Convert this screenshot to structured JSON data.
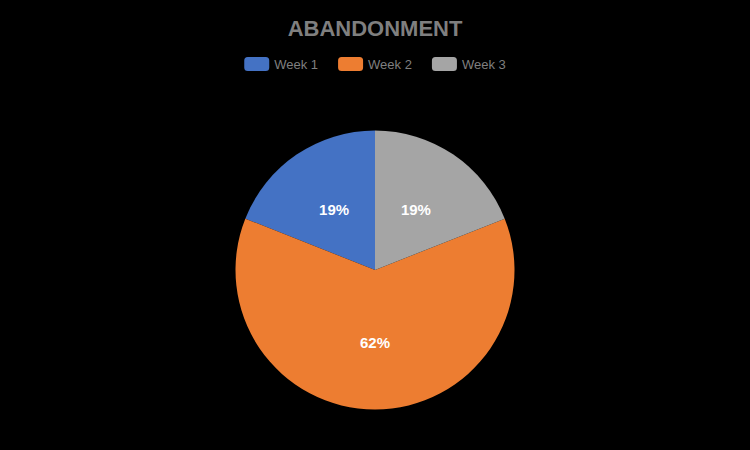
{
  "chart_data": {
    "type": "pie",
    "title": "ABANDONMENT",
    "categories": [
      "Week 1",
      "Week 2",
      "Week 3"
    ],
    "values": [
      19,
      62,
      19
    ],
    "value_labels": [
      "19%",
      "62%",
      "19%"
    ],
    "colors": [
      "#4472C4",
      "#ED7D31",
      "#A5A5A5"
    ],
    "legend": "top",
    "data_labels": true
  }
}
